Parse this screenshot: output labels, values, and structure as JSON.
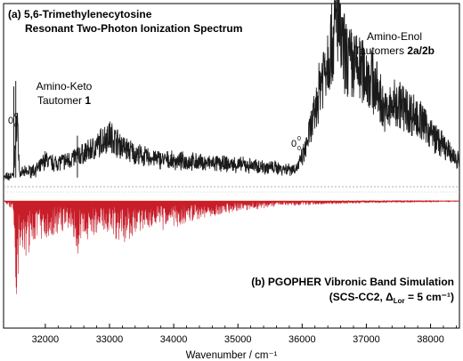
{
  "chart_data": {
    "type": "line",
    "upper_title": {
      "line1": "(a) 5,6-Trimethylenecytosine",
      "line2": "Resonant Two-Photon Ionization Spectrum"
    },
    "lower_title": {
      "line1": "(b) PGOPHER Vibronic Band Simulation",
      "line2_prefix": "(SCS-CC2, Δ",
      "line2_sub": "Lor",
      "line2_suffix": " = 5 cm⁻¹)"
    },
    "annotations": {
      "keto_line1": "Amino-Keto",
      "keto_line2_prefix": "Tautomer ",
      "keto_line2_num": "1",
      "enol_line1": "Amino-Enol",
      "enol_line2_prefix": "Tautomers ",
      "enol_line2_num": "2a/2b",
      "origin_base": "0",
      "origin_sup": "0",
      "origin_sub": "0",
      "keto_origin_x": 31540,
      "enol_origin_x": 35990
    },
    "xlabel": "Wavenumber / cm⁻¹",
    "xlim": [
      31350,
      38450
    ],
    "xticks": [
      32000,
      33000,
      34000,
      35000,
      36000,
      37000,
      38000
    ],
    "xtick_labels": [
      "32000",
      "33000",
      "34000",
      "35000",
      "36000",
      "37000",
      "38000"
    ],
    "series": [
      {
        "role": "experiment",
        "color": "#1a1a1a",
        "x": [
          31350,
          31500,
          31530,
          31560,
          31600,
          31700,
          31900,
          32000,
          32100,
          32300,
          32400,
          32500,
          32600,
          32800,
          32900,
          33000,
          33100,
          33200,
          33400,
          33600,
          33800,
          34000,
          34200,
          34500,
          35000,
          35400,
          35700,
          35900,
          35950,
          36000,
          36050,
          36100,
          36200,
          36300,
          36400,
          36500,
          36550,
          36600,
          36700,
          36800,
          36900,
          37000,
          37100,
          37200,
          37300,
          37400,
          37500,
          37600,
          37800,
          38000,
          38200,
          38400
        ],
        "y": [
          0.05,
          0.06,
          0.2,
          0.4,
          0.07,
          0.08,
          0.1,
          0.15,
          0.13,
          0.14,
          0.15,
          0.17,
          0.18,
          0.22,
          0.26,
          0.28,
          0.25,
          0.22,
          0.18,
          0.16,
          0.15,
          0.14,
          0.14,
          0.13,
          0.12,
          0.11,
          0.1,
          0.1,
          0.12,
          0.16,
          0.2,
          0.28,
          0.4,
          0.6,
          0.72,
          0.82,
          0.95,
          0.78,
          0.7,
          0.66,
          0.64,
          0.62,
          0.58,
          0.5,
          0.4,
          0.44,
          0.46,
          0.43,
          0.38,
          0.3,
          0.22,
          0.15
        ]
      },
      {
        "role": "simulation",
        "color": "#c81e2a",
        "x": [
          31350,
          31500,
          31540,
          31600,
          31700,
          31800,
          32000,
          32200,
          32400,
          32500,
          32600,
          32800,
          33000,
          33200,
          33400,
          33600,
          33800,
          34000,
          34200,
          34500,
          35000,
          35500,
          36000,
          36500,
          37000,
          37500,
          38000,
          38400
        ],
        "y": [
          0.0,
          -0.1,
          -0.95,
          -0.55,
          -0.55,
          -0.4,
          -0.35,
          -0.3,
          -0.28,
          -0.6,
          -0.4,
          -0.3,
          -0.28,
          -0.45,
          -0.3,
          -0.24,
          -0.3,
          -0.26,
          -0.2,
          -0.15,
          -0.1,
          -0.06,
          -0.04,
          -0.03,
          -0.02,
          -0.015,
          -0.01,
          -0.005
        ]
      }
    ]
  }
}
